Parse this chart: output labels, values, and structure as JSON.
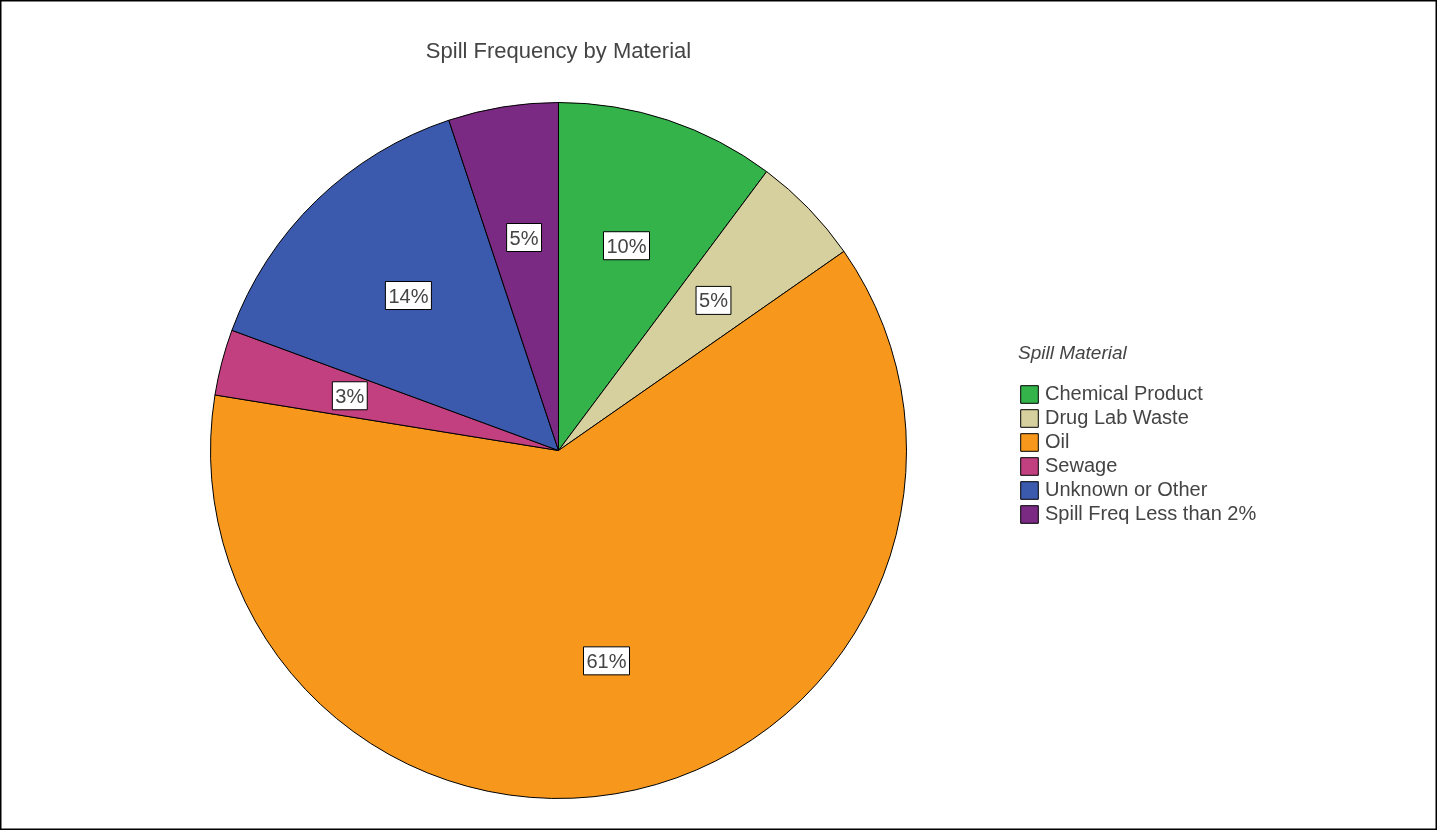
{
  "chart_data": {
    "type": "pie",
    "title": "Spill Frequency by Material",
    "legend_title": "Spill Material",
    "categories": [
      "Chemical Product",
      "Drug Lab Waste",
      "Oil",
      "Sewage",
      "Unknown or Other",
      "Spill Freq Less than 2%"
    ],
    "values": [
      10,
      5,
      61,
      3,
      14,
      5
    ],
    "value_labels": [
      "10%",
      "5%",
      "61%",
      "3%",
      "14%",
      "5%"
    ],
    "colors": [
      "#33b34a",
      "#d6cf9e",
      "#f7981d",
      "#c2407f",
      "#3c5aad",
      "#7a2a82"
    ],
    "legend": "right"
  }
}
